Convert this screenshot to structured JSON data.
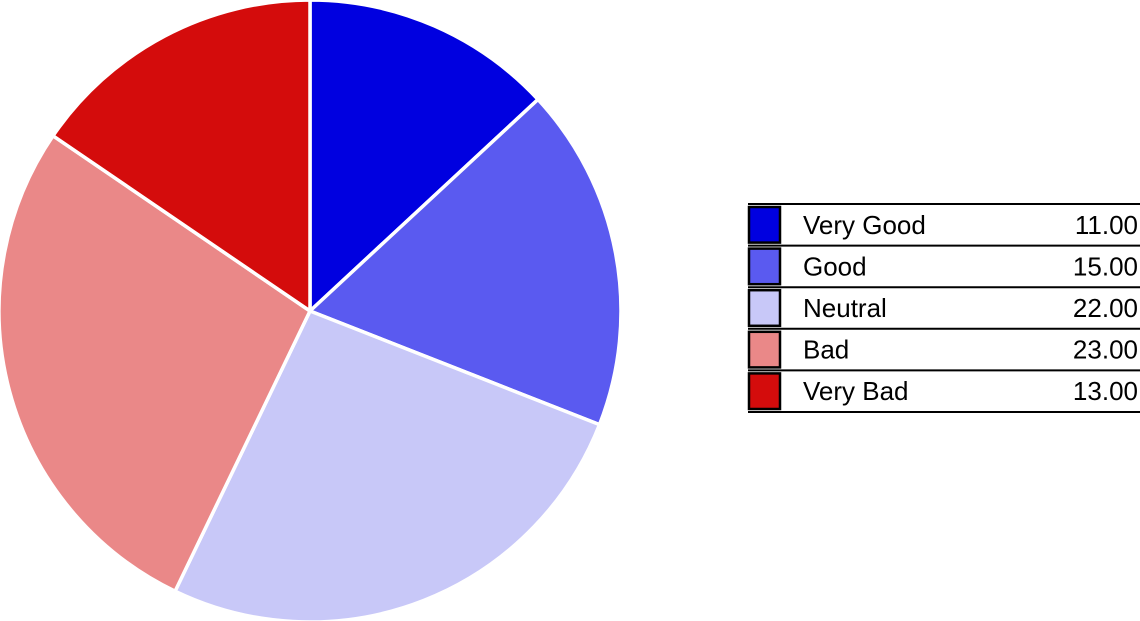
{
  "chart_data": {
    "type": "pie",
    "title": "",
    "start_angle_deg": 0,
    "direction": "clockwise",
    "legend_position": "right",
    "categories": [
      "Very Good",
      "Good",
      "Neutral",
      "Bad",
      "Very Bad"
    ],
    "values": [
      11,
      15,
      22,
      23,
      13
    ],
    "value_labels": [
      "11.00",
      "15.00",
      "22.00",
      "23.00",
      "13.00"
    ],
    "colors": [
      "#0000e0",
      "#5a5af0",
      "#c8c8f8",
      "#ea8888",
      "#d40c0c"
    ]
  }
}
